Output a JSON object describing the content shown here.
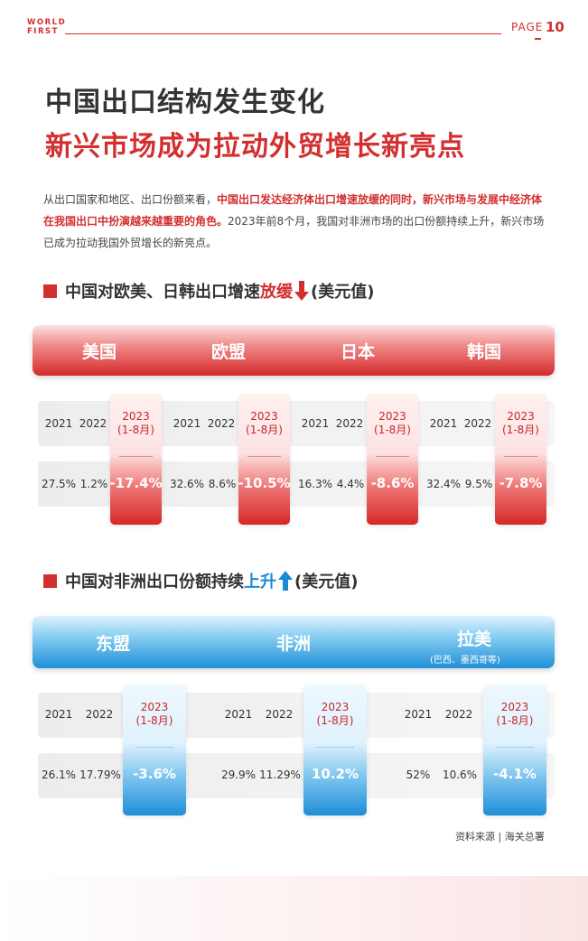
{
  "header": {
    "logo_line1": "WORLD",
    "logo_line2": "FIRST",
    "page_label": "PAGE",
    "page_number": "10"
  },
  "title": {
    "line1": "中国出口结构发生变化",
    "line2": "新兴市场成为拉动外贸增长新亮点"
  },
  "intro": {
    "part1": "从出口国家和地区、出口份额来看，",
    "highlight": "中国出口发达经济体出口增速放缓的同时，新兴市场与发展中经济体在我国出口中扮演越来越重要的角色。",
    "part2": "2023年前8个月，我国对非洲市场的出口份额持续上升，新兴市场已成为拉动我国外贸增长的新亮点。"
  },
  "section1": {
    "heading_pre": "中国对欧美、日韩出口增速",
    "heading_hl": "放缓",
    "heading_post": "(美元值)",
    "arrow": "down-arrow-icon",
    "accent": "#d32f2f",
    "regions": [
      {
        "name": "美国",
        "years": [
          "2021",
          "2022"
        ],
        "hl_year": "2023",
        "hl_period": "(1-8月)",
        "values": [
          "27.5%",
          "1.2%"
        ],
        "hl_value": "-17.4%"
      },
      {
        "name": "欧盟",
        "years": [
          "2021",
          "2022"
        ],
        "hl_year": "2023",
        "hl_period": "(1-8月)",
        "values": [
          "32.6%",
          "8.6%"
        ],
        "hl_value": "-10.5%"
      },
      {
        "name": "日本",
        "years": [
          "2021",
          "2022"
        ],
        "hl_year": "2023",
        "hl_period": "(1-8月)",
        "values": [
          "16.3%",
          "4.4%"
        ],
        "hl_value": "-8.6%"
      },
      {
        "name": "韩国",
        "years": [
          "2021",
          "2022"
        ],
        "hl_year": "2023",
        "hl_period": "(1-8月)",
        "values": [
          "32.4%",
          "9.5%"
        ],
        "hl_value": "-7.8%"
      }
    ]
  },
  "section2": {
    "heading_pre": "中国对非洲出口份额持续",
    "heading_hl": "上升",
    "heading_post": "(美元值)",
    "arrow": "up-arrow-icon",
    "accent": "#1a8ad8",
    "regions": [
      {
        "name": "东盟",
        "sub": "",
        "years": [
          "2021",
          "2022"
        ],
        "hl_year": "2023",
        "hl_period": "(1-8月)",
        "values": [
          "26.1%",
          "17.79%"
        ],
        "hl_value": "-3.6%"
      },
      {
        "name": "非洲",
        "sub": "",
        "years": [
          "2021",
          "2022"
        ],
        "hl_year": "2023",
        "hl_period": "(1-8月)",
        "values": [
          "29.9%",
          "11.29%"
        ],
        "hl_value": "10.2%"
      },
      {
        "name": "拉美",
        "sub": "(巴西、墨西哥等)",
        "years": [
          "2021",
          "2022"
        ],
        "hl_year": "2023",
        "hl_period": "(1-8月)",
        "values": [
          "52%",
          "10.6%"
        ],
        "hl_value": "-4.1%"
      }
    ]
  },
  "source": "资料来源 | 海关总署"
}
